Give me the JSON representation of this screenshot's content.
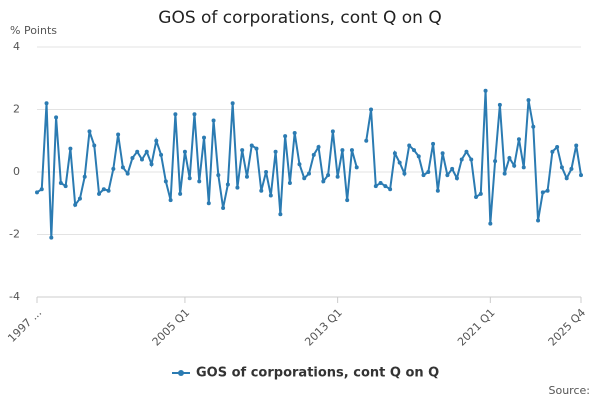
{
  "chart_data": {
    "type": "line",
    "title": "GOS of corporations, cont Q on Q",
    "y_label": "% Points",
    "source": "Source:",
    "categories": [
      "1997 ...",
      null,
      null,
      null,
      null,
      null,
      null,
      null,
      null,
      null,
      null,
      null,
      null,
      null,
      null,
      null,
      null,
      null,
      null,
      null,
      null,
      null,
      null,
      null,
      null,
      null,
      null,
      null,
      null,
      null,
      null,
      "2005 Q1",
      null,
      null,
      null,
      null,
      null,
      null,
      null,
      null,
      null,
      null,
      null,
      null,
      null,
      null,
      null,
      null,
      null,
      null,
      null,
      null,
      null,
      null,
      null,
      null,
      null,
      null,
      null,
      null,
      null,
      null,
      null,
      "2013 Q1",
      null,
      null,
      null,
      null,
      null,
      null,
      null,
      null,
      null,
      null,
      null,
      null,
      null,
      null,
      null,
      null,
      null,
      null,
      null,
      null,
      null,
      null,
      null,
      null,
      null,
      null,
      null,
      null,
      null,
      null,
      null,
      "2021 Q1",
      null,
      null,
      null,
      null,
      null,
      null,
      null,
      null,
      null,
      null,
      null,
      null,
      null,
      null,
      null,
      null,
      null,
      null,
      "2025 Q4"
    ],
    "series": [
      {
        "name": "GOS of corporations, cont Q on Q",
        "color": "#2b7bb2",
        "values": [
          -0.65,
          -0.55,
          2.2,
          -2.1,
          1.75,
          -0.35,
          -0.45,
          0.75,
          -1.05,
          -0.85,
          -0.15,
          1.3,
          0.85,
          -0.7,
          -0.55,
          -0.6,
          0.1,
          1.2,
          0.15,
          -0.05,
          0.45,
          0.65,
          0.4,
          0.65,
          0.25,
          1.0,
          0.55,
          -0.3,
          -0.9,
          1.85,
          -0.7,
          0.65,
          -0.2,
          1.85,
          -0.3,
          1.1,
          -1.0,
          1.65,
          -0.1,
          -1.15,
          -0.4,
          2.2,
          -0.5,
          0.7,
          -0.15,
          0.85,
          0.75,
          -0.6,
          0.0,
          -0.75,
          0.65,
          -1.35,
          1.15,
          -0.35,
          1.25,
          0.25,
          -0.2,
          -0.05,
          0.55,
          0.8,
          -0.3,
          -0.1,
          1.3,
          -0.15,
          0.7,
          -0.9,
          0.7,
          0.15,
          null,
          1.0,
          2.0,
          -0.45,
          -0.35,
          -0.45,
          -0.55,
          0.6,
          0.3,
          -0.05,
          0.85,
          0.7,
          0.5,
          -0.1,
          0.0,
          0.9,
          -0.6,
          0.6,
          -0.1,
          0.1,
          -0.2,
          0.4,
          0.65,
          0.4,
          -0.8,
          -0.7,
          2.6,
          -1.65,
          0.35,
          2.15,
          -0.05,
          0.45,
          0.2,
          1.05,
          0.15,
          2.3,
          1.45,
          -1.55,
          -0.65,
          -0.6,
          0.65,
          0.8,
          0.15,
          -0.2,
          0.1,
          0.85,
          -0.1
        ]
      }
    ],
    "ylim": [
      -4,
      4
    ],
    "yticks": [
      4,
      2,
      0,
      -2,
      -4
    ],
    "grid": true,
    "legend": "bottom"
  }
}
